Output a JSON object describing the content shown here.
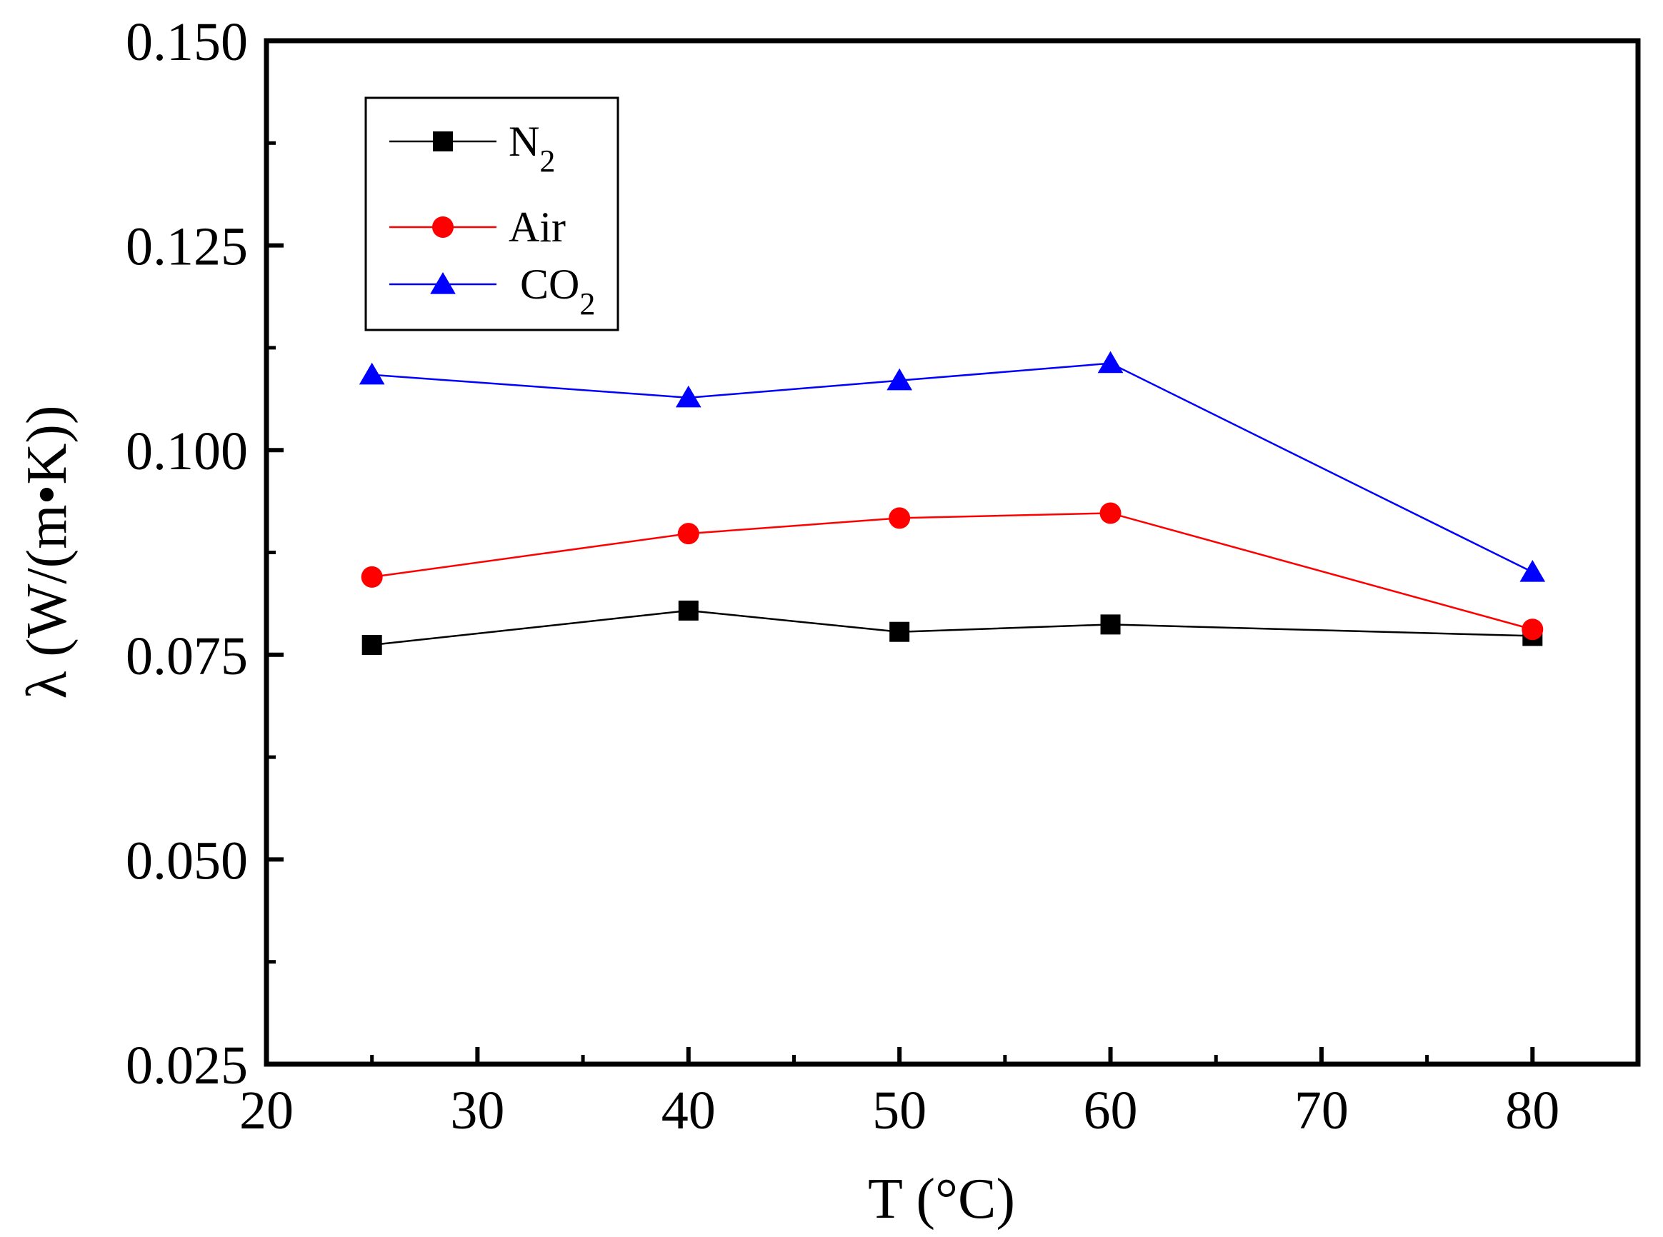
{
  "chart_data": {
    "type": "line",
    "title": "",
    "xlabel": "T  (°C)",
    "ylabel": "λ  (W/(m•K))",
    "xlim": [
      20,
      85
    ],
    "ylim": [
      0.025,
      0.15
    ],
    "xticks": [
      "20",
      "30",
      "40",
      "50",
      "60",
      "70",
      "80"
    ],
    "yticks": [
      "0.025",
      "0.050",
      "0.075",
      "0.100",
      "0.125",
      "0.150"
    ],
    "x": [
      25,
      40,
      50,
      60,
      80
    ],
    "legend_position": "top-left",
    "series": [
      {
        "name": "N2",
        "label_main": "N",
        "label_sub": "2",
        "color": "#000000",
        "marker": "square",
        "values": [
          0.0762,
          0.0804,
          0.0778,
          0.0787,
          0.0773
        ]
      },
      {
        "name": "Air",
        "label_main": "Air",
        "label_sub": "",
        "color": "#ff0000",
        "marker": "circle",
        "values": [
          0.0845,
          0.0898,
          0.0917,
          0.0923,
          0.0781
        ]
      },
      {
        "name": "CO2",
        "label_main": "CO",
        "label_sub": "2",
        "color": "#0000ff",
        "marker": "triangle",
        "values": [
          0.1092,
          0.1064,
          0.1085,
          0.1106,
          0.0851
        ]
      }
    ]
  }
}
